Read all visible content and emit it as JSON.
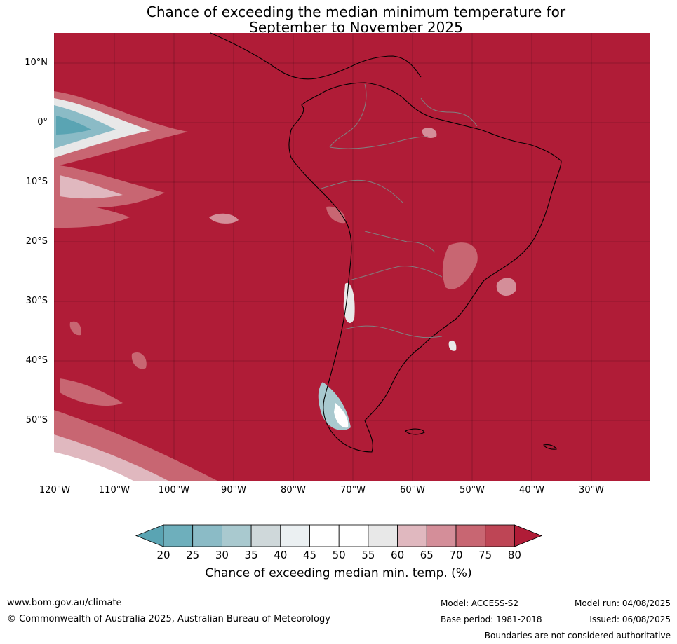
{
  "title": {
    "line1": "Chance of exceeding the median minimum temperature for",
    "line2": "September to November 2025"
  },
  "map": {
    "background_color": "#b01c37",
    "lat_labels": [
      "10°N",
      "0°",
      "10°S",
      "20°S",
      "30°S",
      "40°S",
      "50°S"
    ],
    "lon_labels": [
      "120°W",
      "110°W",
      "100°W",
      "90°W",
      "80°W",
      "70°W",
      "60°W",
      "50°W",
      "40°W",
      "30°W"
    ]
  },
  "colorbar": {
    "ticks": [
      "20",
      "25",
      "30",
      "35",
      "40",
      "45",
      "50",
      "55",
      "60",
      "65",
      "70",
      "75",
      "80"
    ],
    "colors": [
      "#5aa4b3",
      "#6eafbc",
      "#8bbbc6",
      "#a9c9cf",
      "#cfd8da",
      "#ebf0f2",
      "#ffffff",
      "#ffffff",
      "#e8e8e8",
      "#e0b8bf",
      "#d48e99",
      "#c86672",
      "#be4555",
      "#b01c37"
    ],
    "label": "Chance of exceeding median min. temp. (%)"
  },
  "footer": {
    "url": "www.bom.gov.au/climate",
    "copyright": "© Commonwealth of Australia 2025, Australian Bureau of Meteorology",
    "model": "Model: ACCESS-S2",
    "model_run": "Model run: 04/08/2025",
    "base_period": "Base period: 1981-2018",
    "issued": "Issued: 06/08/2025",
    "boundaries_note": "Boundaries are not considered authoritative"
  }
}
